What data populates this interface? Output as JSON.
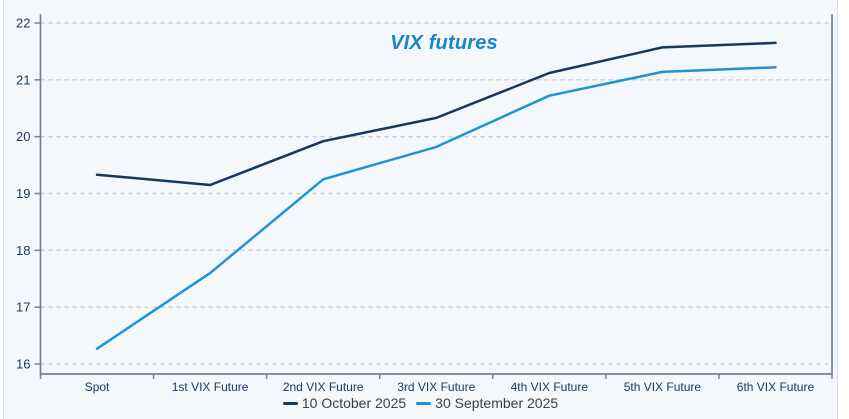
{
  "chart_data": {
    "type": "line",
    "title": "VIX futures",
    "categories": [
      "Spot",
      "1st VIX Future",
      "2nd VIX Future",
      "3rd VIX Future",
      "4th VIX Future",
      "5th VIX Future",
      "6th VIX Future"
    ],
    "series": [
      {
        "name": "10 October 2025",
        "color": "#17375d",
        "values": [
          19.33,
          19.15,
          19.92,
          20.33,
          21.12,
          21.57,
          21.65
        ]
      },
      {
        "name": "30 September 2025",
        "color": "#2094d3",
        "values": [
          16.27,
          17.6,
          19.25,
          19.82,
          20.72,
          21.14,
          21.22
        ]
      }
    ],
    "xlabel": "",
    "ylabel": "",
    "ylim": [
      16,
      22
    ],
    "y_ticks": [
      16,
      17,
      18,
      19,
      20,
      21,
      22
    ],
    "grid": "horizontal-dashed",
    "legend_position": "bottom"
  },
  "style": {
    "axis_color": "#77828f",
    "grid_color": "#c9ced7",
    "tick_label_color": "#1f3864",
    "title_color": "#1a86c8",
    "legend_text_color": "#3f3f3f",
    "card_background": "#f4f7fb"
  }
}
